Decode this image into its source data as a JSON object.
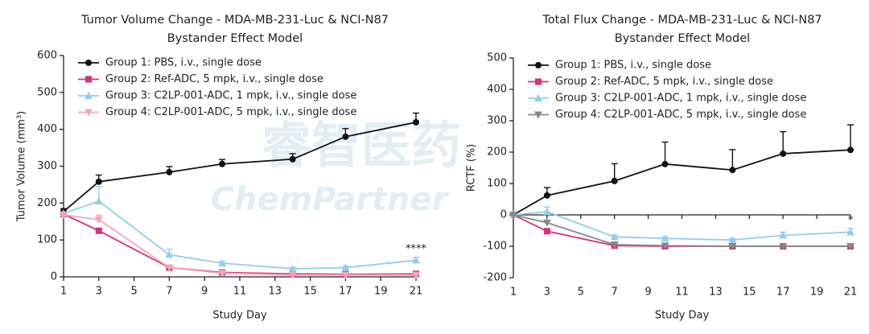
{
  "chart_data": [
    {
      "type": "line",
      "title": "Tumor Volume Change - MDA-MB-231-Luc & NCI-N87",
      "subtitle": "Bystander Effect Model",
      "x_label": "Study Day",
      "y_label": "Tumor Volume (mm³)",
      "annotation": "****",
      "watermark": [
        "睿智医药",
        "ChemPartner"
      ],
      "x": [
        1,
        3,
        7,
        10,
        14,
        17,
        21
      ],
      "xlim": [
        1,
        21
      ],
      "xticks": [
        1,
        3,
        5,
        7,
        9,
        11,
        13,
        15,
        17,
        19,
        21
      ],
      "ylim": [
        0,
        600
      ],
      "yticks": [
        0,
        100,
        200,
        300,
        400,
        500,
        600
      ],
      "legend": "upper-left",
      "series": [
        {
          "name": "Group 1: PBS, i.v., single dose",
          "color": "#111111",
          "marker": "circle",
          "values": [
            177,
            258,
            284,
            306,
            319,
            380,
            419
          ],
          "errors": [
            8,
            18,
            15,
            12,
            15,
            22,
            25
          ]
        },
        {
          "name": "Group 2: Ref-ADC, 5 mpk, i.v., single dose",
          "color": "#d6307a",
          "marker": "square",
          "values": [
            170,
            125,
            25,
            12,
            8,
            7,
            8
          ],
          "errors": [
            null,
            5,
            3,
            2,
            2,
            2,
            2
          ]
        },
        {
          "name": "Group 3: C2LP-001-ADC, 1 mpk, i.v., single dose",
          "color": "#93cdf0",
          "marker": "triangle-up",
          "values": [
            172,
            205,
            60,
            37,
            22,
            25,
            45
          ],
          "errors": [
            null,
            40,
            15,
            5,
            4,
            4,
            8
          ]
        },
        {
          "name": "Group 4: C2LP-001-ADC, 5 mpk, i.v., single dose",
          "color": "#f4a6b8",
          "marker": "triangle-down",
          "values": [
            168,
            155,
            25,
            10,
            5,
            5,
            5
          ],
          "errors": [
            null,
            12,
            3,
            2,
            1,
            1,
            1
          ]
        }
      ]
    },
    {
      "type": "line",
      "title": "Total Flux Change - MDA-MB-231-Luc & NCI-N87",
      "subtitle": "Bystander Effect Model",
      "x_label": "Study Day",
      "y_label": "RCTF (%)",
      "annotation": "*",
      "x": [
        1,
        3,
        7,
        10,
        14,
        17,
        21
      ],
      "xlim": [
        1,
        21
      ],
      "xticks": [
        1,
        3,
        5,
        7,
        9,
        11,
        13,
        15,
        17,
        19,
        21
      ],
      "ylim": [
        -200,
        500
      ],
      "yticks": [
        -200,
        -100,
        0,
        100,
        200,
        300,
        400,
        500
      ],
      "legend": "upper-left",
      "series": [
        {
          "name": "Group 1: PBS, i.v., single dose",
          "color": "#111111",
          "marker": "circle",
          "values": [
            0,
            62,
            108,
            162,
            143,
            195,
            207
          ],
          "errors": [
            null,
            25,
            55,
            70,
            65,
            70,
            80
          ]
        },
        {
          "name": "Group 2: Ref-ADC, 5 mpk, i.v., single dose",
          "color": "#d6307a",
          "marker": "square",
          "values": [
            0,
            -52,
            -98,
            -100,
            -100,
            -100,
            -100
          ],
          "errors": [
            null,
            5,
            3,
            2,
            2,
            2,
            2
          ]
        },
        {
          "name": "Group 3: C2LP-001-ADC, 1 mpk, i.v., single dose",
          "color": "#93cdf0",
          "marker": "triangle-up",
          "values": [
            0,
            10,
            -70,
            -75,
            -80,
            -65,
            -55
          ],
          "errors": [
            null,
            15,
            5,
            5,
            5,
            10,
            12
          ]
        },
        {
          "name": "Group 4: C2LP-001-ADC, 5 mpk, i.v., single dose",
          "color": "#888888",
          "marker": "triangle-down",
          "values": [
            0,
            -25,
            -95,
            -98,
            -100,
            -100,
            -100
          ],
          "errors": [
            null,
            5,
            3,
            2,
            2,
            2,
            2
          ]
        }
      ]
    }
  ]
}
